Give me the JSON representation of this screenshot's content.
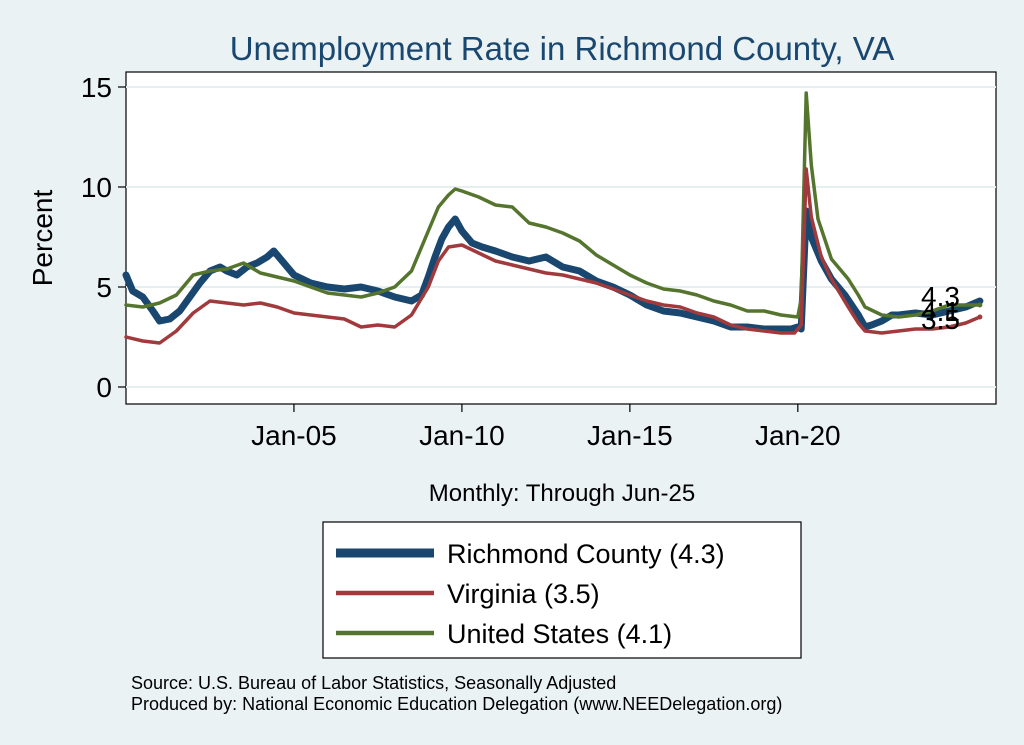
{
  "chart_data": {
    "type": "line",
    "title": "Unemployment Rate in Richmond  County, VA",
    "ylabel": "Percent",
    "xlabel": "Monthly: Through Jun-25",
    "ylim": [
      0,
      15
    ],
    "yticks": [
      0,
      5,
      10,
      15
    ],
    "xlim": [
      2000.0,
      2025.9
    ],
    "xticks": [
      {
        "value": 2005,
        "label": "Jan-05"
      },
      {
        "value": 2010,
        "label": "Jan-10"
      },
      {
        "value": 2015,
        "label": "Jan-15"
      },
      {
        "value": 2020,
        "label": "Jan-20"
      }
    ],
    "grid": true,
    "legend_position": "bottom",
    "series": [
      {
        "name": "Richmond  County (4.3)",
        "color": "#1a476f",
        "end_label": "4.3",
        "points": [
          [
            2000.0,
            5.6
          ],
          [
            2000.2,
            4.8
          ],
          [
            2000.5,
            4.5
          ],
          [
            2000.8,
            3.8
          ],
          [
            2001.0,
            3.3
          ],
          [
            2001.3,
            3.4
          ],
          [
            2001.6,
            3.8
          ],
          [
            2001.9,
            4.5
          ],
          [
            2002.2,
            5.2
          ],
          [
            2002.5,
            5.8
          ],
          [
            2002.8,
            6.0
          ],
          [
            2003.0,
            5.8
          ],
          [
            2003.3,
            5.6
          ],
          [
            2003.6,
            6.0
          ],
          [
            2003.9,
            6.2
          ],
          [
            2004.2,
            6.5
          ],
          [
            2004.4,
            6.8
          ],
          [
            2004.7,
            6.2
          ],
          [
            2005.0,
            5.6
          ],
          [
            2005.5,
            5.2
          ],
          [
            2006.0,
            5.0
          ],
          [
            2006.5,
            4.9
          ],
          [
            2007.0,
            5.0
          ],
          [
            2007.5,
            4.8
          ],
          [
            2008.0,
            4.5
          ],
          [
            2008.5,
            4.3
          ],
          [
            2008.8,
            4.6
          ],
          [
            2009.0,
            5.5
          ],
          [
            2009.2,
            6.5
          ],
          [
            2009.4,
            7.4
          ],
          [
            2009.6,
            8.0
          ],
          [
            2009.8,
            8.4
          ],
          [
            2010.0,
            7.8
          ],
          [
            2010.3,
            7.2
          ],
          [
            2010.6,
            7.0
          ],
          [
            2011.0,
            6.8
          ],
          [
            2011.5,
            6.5
          ],
          [
            2012.0,
            6.3
          ],
          [
            2012.5,
            6.5
          ],
          [
            2013.0,
            6.0
          ],
          [
            2013.5,
            5.8
          ],
          [
            2014.0,
            5.3
          ],
          [
            2014.5,
            5.0
          ],
          [
            2015.0,
            4.6
          ],
          [
            2015.5,
            4.1
          ],
          [
            2016.0,
            3.8
          ],
          [
            2016.5,
            3.7
          ],
          [
            2017.0,
            3.5
          ],
          [
            2017.5,
            3.3
          ],
          [
            2018.0,
            3.0
          ],
          [
            2018.5,
            3.0
          ],
          [
            2019.0,
            2.9
          ],
          [
            2019.5,
            2.9
          ],
          [
            2019.8,
            2.9
          ],
          [
            2020.0,
            3.0
          ],
          [
            2020.1,
            2.9
          ],
          [
            2020.25,
            8.8
          ],
          [
            2020.4,
            7.5
          ],
          [
            2020.7,
            6.3
          ],
          [
            2021.0,
            5.4
          ],
          [
            2021.4,
            4.6
          ],
          [
            2021.8,
            3.6
          ],
          [
            2022.0,
            3.0
          ],
          [
            2022.2,
            3.1
          ],
          [
            2022.5,
            3.3
          ],
          [
            2022.8,
            3.6
          ],
          [
            2023.0,
            3.6
          ],
          [
            2023.5,
            3.7
          ],
          [
            2024.0,
            3.6
          ],
          [
            2024.5,
            3.8
          ],
          [
            2025.0,
            4.0
          ],
          [
            2025.42,
            4.3
          ]
        ]
      },
      {
        "name": "Virginia (3.5)",
        "color": "#a03a3c",
        "end_label": "3.5",
        "points": [
          [
            2000.0,
            2.5
          ],
          [
            2000.5,
            2.3
          ],
          [
            2001.0,
            2.2
          ],
          [
            2001.5,
            2.8
          ],
          [
            2002.0,
            3.7
          ],
          [
            2002.5,
            4.3
          ],
          [
            2003.0,
            4.2
          ],
          [
            2003.5,
            4.1
          ],
          [
            2004.0,
            4.2
          ],
          [
            2004.5,
            4.0
          ],
          [
            2005.0,
            3.7
          ],
          [
            2005.5,
            3.6
          ],
          [
            2006.0,
            3.5
          ],
          [
            2006.5,
            3.4
          ],
          [
            2007.0,
            3.0
          ],
          [
            2007.5,
            3.1
          ],
          [
            2008.0,
            3.0
          ],
          [
            2008.5,
            3.6
          ],
          [
            2009.0,
            5.0
          ],
          [
            2009.3,
            6.3
          ],
          [
            2009.6,
            7.0
          ],
          [
            2010.0,
            7.1
          ],
          [
            2010.5,
            6.7
          ],
          [
            2011.0,
            6.3
          ],
          [
            2011.5,
            6.1
          ],
          [
            2012.0,
            5.9
          ],
          [
            2012.5,
            5.7
          ],
          [
            2013.0,
            5.6
          ],
          [
            2013.5,
            5.4
          ],
          [
            2014.0,
            5.2
          ],
          [
            2014.5,
            4.9
          ],
          [
            2015.0,
            4.6
          ],
          [
            2015.5,
            4.3
          ],
          [
            2016.0,
            4.1
          ],
          [
            2016.5,
            4.0
          ],
          [
            2017.0,
            3.7
          ],
          [
            2017.5,
            3.5
          ],
          [
            2018.0,
            3.1
          ],
          [
            2018.5,
            2.9
          ],
          [
            2019.0,
            2.8
          ],
          [
            2019.5,
            2.7
          ],
          [
            2019.9,
            2.7
          ],
          [
            2020.1,
            3.1
          ],
          [
            2020.25,
            10.9
          ],
          [
            2020.4,
            8.5
          ],
          [
            2020.7,
            6.5
          ],
          [
            2021.0,
            5.4
          ],
          [
            2021.5,
            4.0
          ],
          [
            2021.8,
            3.2
          ],
          [
            2022.0,
            2.8
          ],
          [
            2022.5,
            2.7
          ],
          [
            2023.0,
            2.8
          ],
          [
            2023.5,
            2.9
          ],
          [
            2024.0,
            2.9
          ],
          [
            2024.5,
            3.0
          ],
          [
            2025.0,
            3.2
          ],
          [
            2025.42,
            3.5
          ]
        ]
      },
      {
        "name": "United States (4.1)",
        "color": "#55752f",
        "end_label": "4.1",
        "points": [
          [
            2000.0,
            4.1
          ],
          [
            2000.5,
            4.0
          ],
          [
            2001.0,
            4.2
          ],
          [
            2001.5,
            4.6
          ],
          [
            2002.0,
            5.6
          ],
          [
            2002.5,
            5.8
          ],
          [
            2003.0,
            5.9
          ],
          [
            2003.5,
            6.2
          ],
          [
            2004.0,
            5.7
          ],
          [
            2004.5,
            5.5
          ],
          [
            2005.0,
            5.3
          ],
          [
            2005.5,
            5.0
          ],
          [
            2006.0,
            4.7
          ],
          [
            2006.5,
            4.6
          ],
          [
            2007.0,
            4.5
          ],
          [
            2007.5,
            4.7
          ],
          [
            2008.0,
            5.0
          ],
          [
            2008.5,
            5.8
          ],
          [
            2009.0,
            7.8
          ],
          [
            2009.3,
            9.0
          ],
          [
            2009.6,
            9.6
          ],
          [
            2009.8,
            9.9
          ],
          [
            2010.0,
            9.8
          ],
          [
            2010.5,
            9.5
          ],
          [
            2011.0,
            9.1
          ],
          [
            2011.5,
            9.0
          ],
          [
            2012.0,
            8.2
          ],
          [
            2012.5,
            8.0
          ],
          [
            2013.0,
            7.7
          ],
          [
            2013.5,
            7.3
          ],
          [
            2014.0,
            6.6
          ],
          [
            2014.5,
            6.1
          ],
          [
            2015.0,
            5.6
          ],
          [
            2015.5,
            5.2
          ],
          [
            2016.0,
            4.9
          ],
          [
            2016.5,
            4.8
          ],
          [
            2017.0,
            4.6
          ],
          [
            2017.5,
            4.3
          ],
          [
            2018.0,
            4.1
          ],
          [
            2018.5,
            3.8
          ],
          [
            2019.0,
            3.8
          ],
          [
            2019.5,
            3.6
          ],
          [
            2020.0,
            3.5
          ],
          [
            2020.1,
            4.4
          ],
          [
            2020.25,
            14.7
          ],
          [
            2020.4,
            11.1
          ],
          [
            2020.6,
            8.4
          ],
          [
            2021.0,
            6.4
          ],
          [
            2021.5,
            5.4
          ],
          [
            2021.8,
            4.6
          ],
          [
            2022.0,
            4.0
          ],
          [
            2022.5,
            3.6
          ],
          [
            2023.0,
            3.5
          ],
          [
            2023.5,
            3.6
          ],
          [
            2024.0,
            3.8
          ],
          [
            2024.5,
            4.1
          ],
          [
            2025.0,
            4.1
          ],
          [
            2025.42,
            4.1
          ]
        ]
      }
    ],
    "source_lines": [
      "Source: U.S. Bureau of Labor Statistics, Seasonally Adjusted",
      "Produced by: National Economic Education Delegation (www.NEEDelegation.org)"
    ]
  }
}
